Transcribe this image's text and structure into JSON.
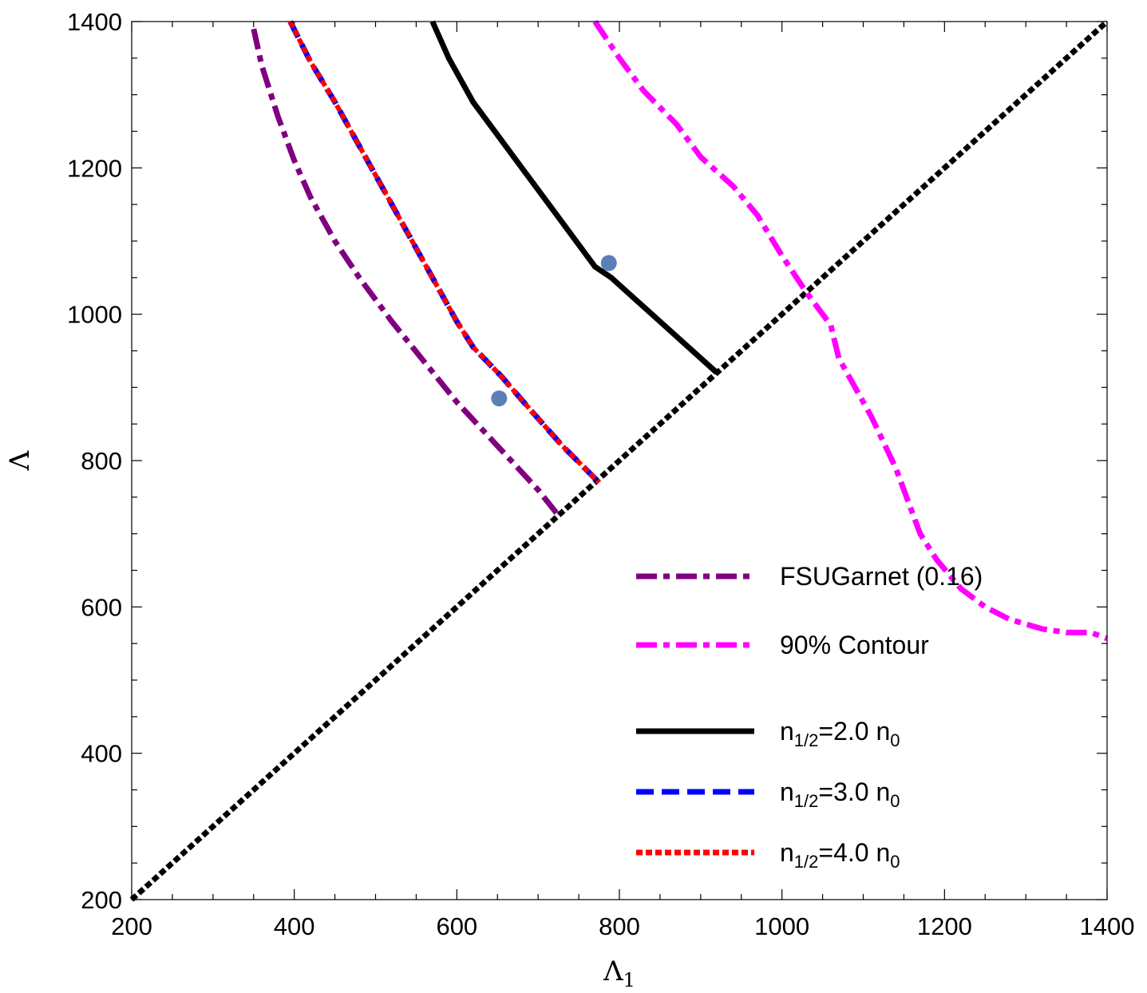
{
  "chart_data": {
    "type": "line",
    "xlabel": "Λ₁",
    "ylabel": "Λ",
    "xlim": [
      200,
      1400
    ],
    "ylim": [
      200,
      1400
    ],
    "xticks": [
      200,
      400,
      600,
      800,
      1000,
      1200,
      1400
    ],
    "yticks": [
      200,
      400,
      600,
      800,
      1000,
      1200,
      1400
    ],
    "xtick_labels": [
      "200",
      "400",
      "600",
      "800",
      "1000",
      "1200",
      "1400"
    ],
    "ytick_labels": [
      "200",
      "400",
      "600",
      "800",
      "1000",
      "1200",
      "1400"
    ],
    "grid": false,
    "legend_position": "bottom-right",
    "series": [
      {
        "key": "fsugarnet",
        "name": "FSUGarnet (0.16)",
        "color": "#800080",
        "dash": "dash-dot",
        "x": [
          350,
          360,
          380,
          400,
          420,
          450,
          480,
          520,
          560,
          600,
          650,
          700,
          725
        ],
        "y": [
          1390,
          1340,
          1270,
          1210,
          1160,
          1100,
          1050,
          990,
          935,
          880,
          820,
          760,
          725
        ]
      },
      {
        "key": "contour",
        "name": "90% Contour",
        "color": "#ff00ff",
        "dash": "dash-dot",
        "x": [
          770,
          800,
          830,
          870,
          900,
          940,
          970,
          1000,
          1030,
          1060,
          1070,
          1080,
          1110,
          1140,
          1170,
          1190,
          1220,
          1250,
          1280,
          1320,
          1350,
          1380,
          1400
        ],
        "y": [
          1400,
          1350,
          1305,
          1260,
          1215,
          1175,
          1135,
          1080,
          1030,
          985,
          940,
          920,
          860,
          790,
          700,
          665,
          625,
          600,
          583,
          570,
          565,
          565,
          557
        ]
      },
      {
        "key": "n2",
        "name": "n1/2=2.0 n0",
        "color": "#000000",
        "dash": "solid",
        "x": [
          570,
          590,
          620,
          660,
          700,
          740,
          770,
          790,
          815,
          850,
          890,
          920
        ],
        "y": [
          1400,
          1350,
          1290,
          1230,
          1170,
          1110,
          1065,
          1050,
          1025,
          990,
          950,
          920
        ]
      },
      {
        "key": "n3",
        "name": "n1/2=3.0 n0",
        "color": "#0000ff",
        "dash": "dash",
        "x": [
          395,
          420,
          450,
          480,
          510,
          540,
          570,
          600,
          620,
          655,
          690,
          730,
          775
        ],
        "y": [
          1400,
          1345,
          1290,
          1230,
          1170,
          1110,
          1050,
          990,
          955,
          915,
          870,
          820,
          770
        ]
      },
      {
        "key": "n4",
        "name": "n1/2=4.0 n0",
        "color": "#ff0000",
        "dash": "dot",
        "x": [
          395,
          420,
          450,
          480,
          510,
          540,
          570,
          600,
          620,
          655,
          690,
          730,
          775
        ],
        "y": [
          1400,
          1345,
          1290,
          1230,
          1170,
          1110,
          1050,
          990,
          955,
          915,
          870,
          820,
          770
        ]
      },
      {
        "key": "diagonal",
        "color": "#000000",
        "dash": "dot",
        "x": [
          200,
          1400
        ],
        "y": [
          200,
          1400
        ]
      }
    ],
    "points": [
      {
        "x": 652,
        "y": 885,
        "color": "#5b80b8"
      },
      {
        "x": 787,
        "y": 1070,
        "color": "#5b80b8"
      }
    ],
    "legend": [
      {
        "key": "fsugarnet",
        "label": "FSUGarnet (0.16)"
      },
      {
        "key": "contour",
        "label": "90% Contour"
      },
      {
        "key": "n2",
        "main": "n",
        "sub": "1/2",
        "mid": "=2.0 n",
        "sub2": "0"
      },
      {
        "key": "n3",
        "main": "n",
        "sub": "1/2",
        "mid": "=3.0 n",
        "sub2": "0"
      },
      {
        "key": "n4",
        "main": "n",
        "sub": "1/2",
        "mid": "=4.0 n",
        "sub2": "0"
      }
    ]
  }
}
